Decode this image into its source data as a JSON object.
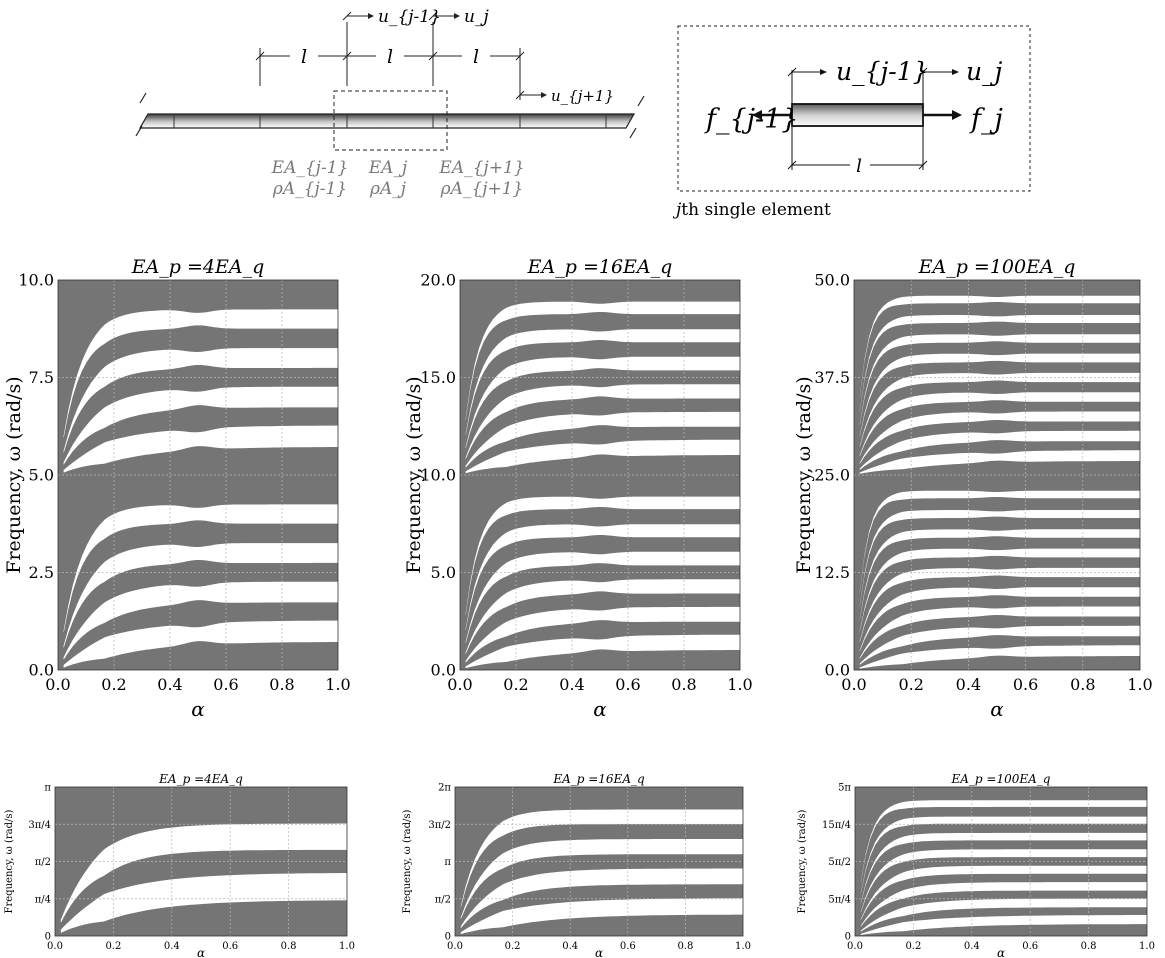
{
  "schematic": {
    "disp_top": [
      "u_{j-1}",
      "u_j"
    ],
    "disp_side": "u_{j+1}",
    "spacing_label": "l",
    "props": [
      {
        "ea": "EA_{j-1}",
        "rho": "ρA_{j-1}",
        "color": "#7a7a7a"
      },
      {
        "ea": "EA_j",
        "rho": "ρA_j",
        "color": "#7a7a7a"
      },
      {
        "ea": "EA_{j+1}",
        "rho": "ρA_{j+1}",
        "color": "#7a7a7a"
      }
    ]
  },
  "element": {
    "u_left": "u_{j-1}",
    "u_right": "u_j",
    "f_left": "f_{j-1}",
    "f_right": "f_j",
    "length_label": "l",
    "caption_var": "j",
    "caption_text": "th single element"
  },
  "colors": {
    "band": "#757575",
    "gap": "#ffffff",
    "grid": "#b8b8b8"
  },
  "chart_data": [
    {
      "type": "band-map",
      "title": "EA_p =4EA_q",
      "xlabel": "α",
      "ylabel": "Frequency, ω (rad/s)",
      "xlim": [
        0,
        1
      ],
      "ylim": [
        0,
        10
      ],
      "xticks": [
        "0.0",
        "0.2",
        "0.4",
        "0.6",
        "0.8",
        "1.0"
      ],
      "yticks": [
        "0.0",
        "2.5",
        "5.0",
        "7.5",
        "10.0"
      ]
    },
    {
      "type": "band-map",
      "title": "EA_p =16EA_q",
      "xlabel": "α",
      "ylabel": "Frequency, ω (rad/s)",
      "xlim": [
        0,
        1
      ],
      "ylim": [
        0,
        20
      ],
      "xticks": [
        "0.0",
        "0.2",
        "0.4",
        "0.6",
        "0.8",
        "1.0"
      ],
      "yticks": [
        "0.0",
        "5.0",
        "10.0",
        "15.0",
        "20.0"
      ]
    },
    {
      "type": "band-map",
      "title": "EA_p =100EA_q",
      "xlabel": "α",
      "ylabel": "Frequency, ω (rad/s)",
      "xlim": [
        0,
        1
      ],
      "ylim": [
        0,
        50
      ],
      "xticks": [
        "0.0",
        "0.2",
        "0.4",
        "0.6",
        "0.8",
        "1.0"
      ],
      "yticks": [
        "0.0",
        "12.5",
        "25.0",
        "37.5",
        "50.0"
      ]
    },
    {
      "type": "band-map",
      "title": "EA_p =4EA_q",
      "xlabel": "α",
      "ylabel": "Frequency, ω (rad/s)",
      "xlim": [
        0,
        1
      ],
      "ylim": [
        0,
        3.1416
      ],
      "xticks": [
        "0.0",
        "0.2",
        "0.4",
        "0.6",
        "0.8",
        "1.0"
      ],
      "yticks": [
        "0",
        "π/4",
        "π/2",
        "3π/4",
        "π"
      ]
    },
    {
      "type": "band-map",
      "title": "EA_p =16EA_q",
      "xlabel": "α",
      "ylabel": "Frequency, ω (rad/s)",
      "xlim": [
        0,
        1
      ],
      "ylim": [
        0,
        6.2832
      ],
      "xticks": [
        "0.0",
        "0.2",
        "0.4",
        "0.6",
        "0.8",
        "1.0"
      ],
      "yticks": [
        "0",
        "π/2",
        "π",
        "3π/2",
        "2π"
      ]
    },
    {
      "type": "band-map",
      "title": "EA_p =100EA_q",
      "xlabel": "α",
      "ylabel": "Frequency, ω (rad/s)",
      "xlim": [
        0,
        1
      ],
      "ylim": [
        0,
        15.708
      ],
      "xticks": [
        "0.0",
        "0.2",
        "0.4",
        "0.6",
        "0.8",
        "1.0"
      ],
      "yticks": [
        "0",
        "5π/4",
        "5π/2",
        "15π/4",
        "5π"
      ]
    }
  ]
}
